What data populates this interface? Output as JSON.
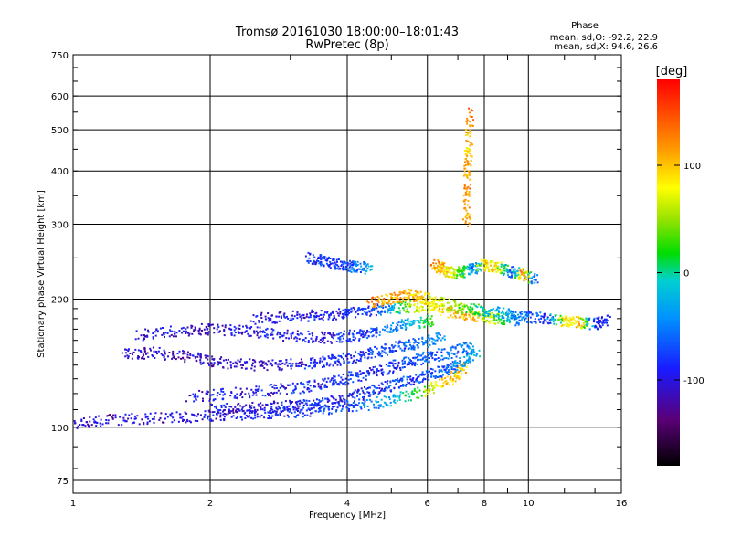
{
  "chart_data": {
    "type": "scatter",
    "title": "Tromsø 20161030 18:00:00–18:01:43",
    "subtitle": "RwPretec (8p)",
    "xlabel": "Frequency [MHz]",
    "ylabel": "Stationary phase Virtual Height [km]",
    "x_scale": "log",
    "y_scale": "log",
    "xlim": [
      1,
      16
    ],
    "ylim": [
      70,
      750
    ],
    "x_ticks": [
      1,
      2,
      4,
      6,
      8,
      10,
      16
    ],
    "y_ticks": [
      75,
      100,
      200,
      300,
      400,
      500,
      600,
      750
    ],
    "grid": true,
    "stats": {
      "heading": "Phase",
      "o_line": "mean, sd,O: -92.2, 22.9",
      "x_line": "mean, sd,X:  94.6, 26.6"
    },
    "colorbar": {
      "label": "[deg]",
      "ticks": [
        100,
        0,
        -100
      ],
      "range": [
        -180,
        180
      ]
    },
    "traces": [
      {
        "x": [
          1.0,
          1.2,
          1.5,
          1.9,
          2.3,
          2.7,
          3.2,
          3.8,
          4.4,
          5.2,
          6.0,
          6.8,
          7.3
        ],
        "y": [
          102,
          104,
          105,
          106,
          107,
          108,
          109,
          111,
          113,
          117,
          122,
          130,
          140
        ],
        "phase": [
          -110,
          -110,
          -105,
          -105,
          -100,
          -95,
          -90,
          -80,
          -60,
          -20,
          60,
          100,
          110
        ]
      },
      {
        "x": [
          2.0,
          2.4,
          2.9,
          3.4,
          3.9,
          4.4,
          4.9,
          5.4,
          6.0,
          6.6,
          7.2,
          7.8
        ],
        "y": [
          110,
          111,
          112,
          113,
          116,
          121,
          125,
          128,
          132,
          136,
          142,
          150
        ],
        "phase": [
          -100,
          -100,
          -95,
          -95,
          -90,
          -85,
          -80,
          -75,
          -70,
          -60,
          -40,
          -20
        ]
      },
      {
        "x": [
          1.8,
          2.2,
          2.7,
          3.2,
          3.7,
          4.2,
          4.8,
          5.4,
          6.0,
          6.8,
          7.6
        ],
        "y": [
          118,
          120,
          122,
          124,
          128,
          132,
          137,
          142,
          146,
          150,
          156
        ],
        "phase": [
          -100,
          -100,
          -95,
          -90,
          -90,
          -85,
          -80,
          -75,
          -70,
          -60,
          -40
        ]
      },
      {
        "x": [
          1.3,
          1.5,
          1.8,
          2.1,
          2.5,
          3.0,
          3.5,
          4.0,
          4.6,
          5.2,
          5.8,
          6.5
        ],
        "y": [
          148,
          150,
          146,
          142,
          140,
          140,
          142,
          145,
          150,
          155,
          158,
          162
        ],
        "phase": [
          -110,
          -110,
          -105,
          -100,
          -100,
          -95,
          -90,
          -85,
          -80,
          -70,
          -60,
          -40
        ]
      },
      {
        "x": [
          1.4,
          1.7,
          2.0,
          2.4,
          2.8,
          3.3,
          3.8,
          4.3,
          4.9,
          5.5,
          6.2
        ],
        "y": [
          165,
          168,
          170,
          168,
          165,
          163,
          162,
          165,
          170,
          175,
          178
        ],
        "phase": [
          -110,
          -105,
          -105,
          -100,
          -100,
          -95,
          -90,
          -80,
          -60,
          -20,
          40
        ]
      },
      {
        "x": [
          2.5,
          3.0,
          3.5,
          4.0,
          4.5,
          5.0,
          5.6,
          6.2,
          7.0,
          7.8,
          8.6,
          9.6
        ],
        "y": [
          180,
          182,
          183,
          185,
          188,
          190,
          192,
          190,
          185,
          182,
          180,
          178
        ],
        "phase": [
          -100,
          -100,
          -95,
          -90,
          -80,
          -40,
          60,
          100,
          110,
          90,
          40,
          -60
        ]
      },
      {
        "x": [
          4.5,
          5.0,
          5.5,
          6.0,
          6.6,
          7.2,
          8.0,
          9.0,
          10.0,
          11.0,
          12.0,
          13.0,
          14.0,
          15.0
        ],
        "y": [
          196,
          200,
          205,
          200,
          195,
          190,
          188,
          185,
          182,
          180,
          178,
          176,
          175,
          178
        ],
        "phase": [
          120,
          110,
          100,
          90,
          60,
          30,
          0,
          -40,
          -60,
          -80,
          80,
          100,
          -90,
          -95
        ]
      },
      {
        "x": [
          3.3,
          3.6,
          3.9,
          4.2,
          4.5
        ],
        "y": [
          250,
          245,
          240,
          238,
          236
        ],
        "phase": [
          -90,
          -80,
          -70,
          -60,
          -40
        ]
      },
      {
        "x": [
          6.2,
          6.5,
          6.8,
          7.2,
          7.6,
          8.0,
          8.6,
          9.2,
          9.8,
          10.4
        ],
        "y": [
          240,
          235,
          230,
          232,
          236,
          240,
          238,
          232,
          228,
          222
        ],
        "phase": [
          120,
          110,
          60,
          20,
          -60,
          100,
          80,
          -80,
          150,
          -100
        ]
      },
      {
        "x": [
          7.3,
          7.35,
          7.4,
          7.45
        ],
        "y": [
          300,
          380,
          450,
          560
        ],
        "phase": [
          110,
          120,
          90,
          140
        ]
      }
    ],
    "noise_seed": 7
  }
}
